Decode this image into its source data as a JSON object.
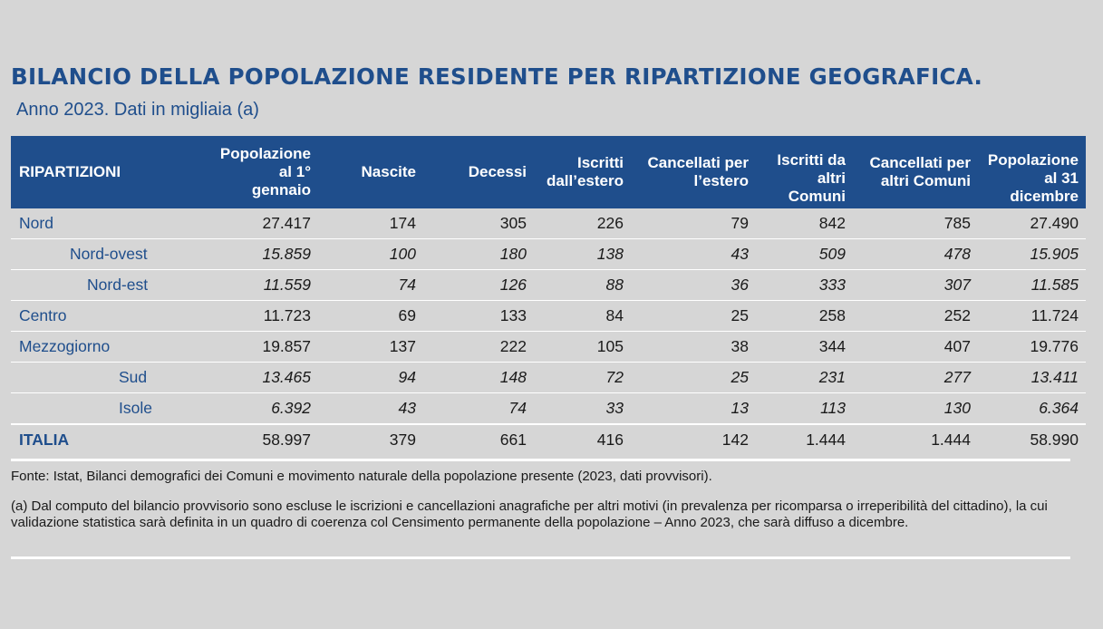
{
  "title": "BILANCIO DELLA POPOLAZIONE RESIDENTE PER RIPARTIZIONE GEOGRAFICA.",
  "subtitle": "Anno 2023. Dati in migliaia (a)",
  "table": {
    "headers": [
      "RIPARTIZIONI",
      "Popolazione\nal 1°\ngennaio",
      "Nascite",
      "Decessi",
      "Iscritti\ndall’estero",
      "Cancellati per\nl’estero",
      "Iscritti da\naltri\nComuni",
      "Cancellati per\naltri Comuni",
      "Popolazione\nal 31\ndicembre"
    ],
    "rows": [
      {
        "label": "Nord",
        "values": [
          "27.417",
          "174",
          "305",
          "226",
          "79",
          "842",
          "785",
          "27.490"
        ]
      },
      {
        "label": "Nord-ovest",
        "values": [
          "15.859",
          "100",
          "180",
          "138",
          "43",
          "509",
          "478",
          "15.905"
        ]
      },
      {
        "label": "Nord-est",
        "values": [
          "11.559",
          "74",
          "126",
          "88",
          "36",
          "333",
          "307",
          "11.585"
        ]
      },
      {
        "label": "Centro",
        "values": [
          "11.723",
          "69",
          "133",
          "84",
          "25",
          "258",
          "252",
          "11.724"
        ]
      },
      {
        "label": "Mezzogiorno",
        "values": [
          "19.857",
          "137",
          "222",
          "105",
          "38",
          "344",
          "407",
          "19.776"
        ]
      },
      {
        "label": "Sud",
        "values": [
          "13.465",
          "94",
          "148",
          "72",
          "25",
          "231",
          "277",
          "13.411"
        ]
      },
      {
        "label": "Isole",
        "values": [
          "6.392",
          "43",
          "74",
          "33",
          "13",
          "113",
          "130",
          "6.364"
        ]
      },
      {
        "label": "ITALIA",
        "values": [
          "58.997",
          "379",
          "661",
          "416",
          "142",
          "1.444",
          "1.444",
          "58.990"
        ]
      }
    ]
  },
  "source": "Fonte: Istat, Bilanci demografici dei Comuni e movimento naturale della popolazione presente (2023, dati provvisori).",
  "note": "(a) Dal computo del bilancio provvisorio sono escluse le iscrizioni e cancellazioni anagrafiche per altri motivi (in prevalenza per ricomparsa o irreperibilità del cittadino), la cui validazione statistica sarà definita in un quadro di coerenza col Censimento permanente della popolazione – Anno 2023, che sarà diffuso a dicembre.",
  "colors": {
    "header_bg": "#1f4e8c",
    "label_text": "#1f4e8c",
    "background": "#d6d6d6"
  }
}
